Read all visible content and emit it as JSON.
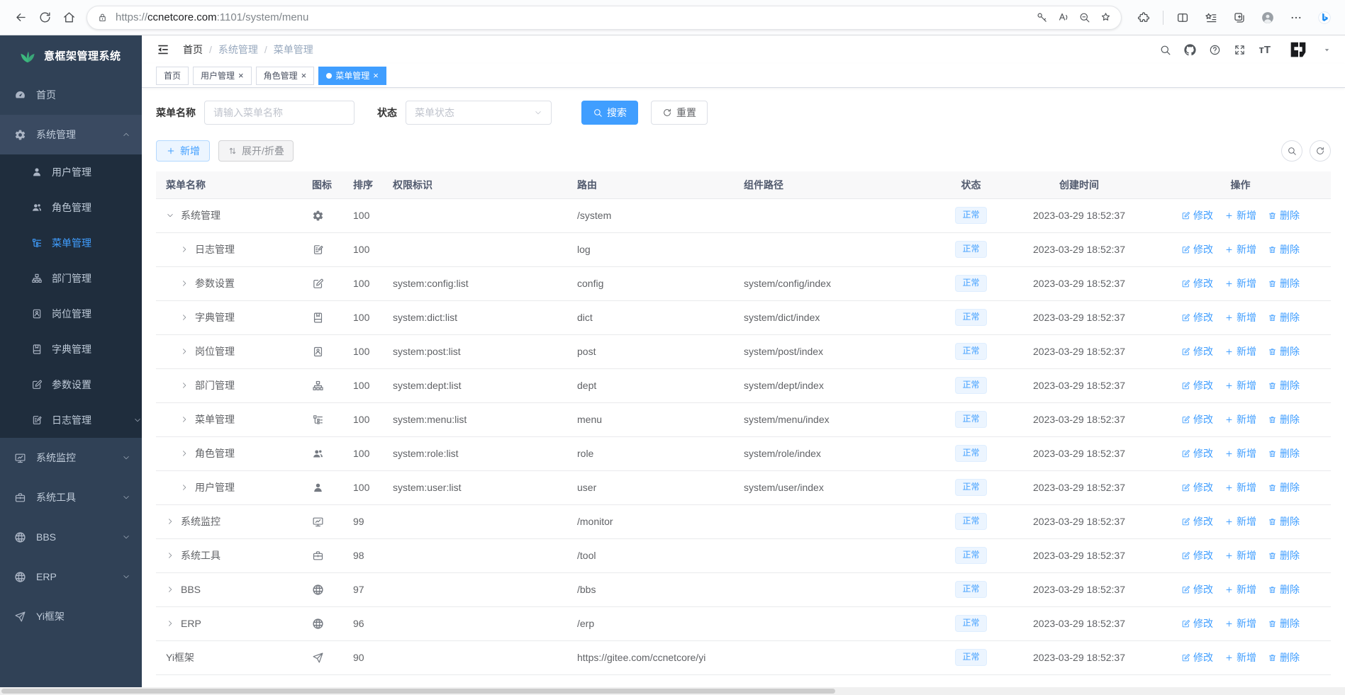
{
  "browser": {
    "url": {
      "scheme": "https://",
      "domain": "ccnetcore.com",
      "path": ":1101/system/menu"
    },
    "toolbar_icons": [
      "back",
      "reload",
      "home"
    ],
    "urlbar_icons": [
      "lock",
      "key",
      "read-aloud",
      "zoom-out",
      "favorite-add"
    ],
    "right_icons": [
      "extensions",
      "split-screen",
      "favorites",
      "collections",
      "profile",
      "more",
      "bing"
    ]
  },
  "sidebar": {
    "title": "意框架管理系统",
    "items": [
      {
        "key": "home",
        "label": "首页",
        "icon": "gauge"
      },
      {
        "key": "system",
        "label": "系统管理",
        "icon": "gear",
        "open": true,
        "children": [
          {
            "key": "user",
            "label": "用户管理",
            "icon": "user"
          },
          {
            "key": "role",
            "label": "角色管理",
            "icon": "users"
          },
          {
            "key": "menu",
            "label": "菜单管理",
            "icon": "treelist",
            "active": true
          },
          {
            "key": "dept",
            "label": "部门管理",
            "icon": "dept"
          },
          {
            "key": "post",
            "label": "岗位管理",
            "icon": "post"
          },
          {
            "key": "dict",
            "label": "字典管理",
            "icon": "dict"
          },
          {
            "key": "config",
            "label": "参数设置",
            "icon": "editsq"
          },
          {
            "key": "log",
            "label": "日志管理",
            "icon": "log",
            "expandable": true
          }
        ]
      },
      {
        "key": "monitor",
        "label": "系统监控",
        "icon": "monitor",
        "expandable": true
      },
      {
        "key": "tool",
        "label": "系统工具",
        "icon": "tool",
        "expandable": true
      },
      {
        "key": "bbs",
        "label": "BBS",
        "icon": "globe",
        "expandable": true
      },
      {
        "key": "erp",
        "label": "ERP",
        "icon": "globe",
        "expandable": true
      },
      {
        "key": "yi",
        "label": "Yi框架",
        "icon": "send"
      }
    ]
  },
  "navbar": {
    "breadcrumb": [
      "首页",
      "系统管理",
      "菜单管理"
    ],
    "right_icons": [
      "search",
      "github",
      "question",
      "fullscreen"
    ],
    "font_size_glyph": "тT"
  },
  "tabs": [
    {
      "label": "首页",
      "closable": false,
      "active": false
    },
    {
      "label": "用户管理",
      "closable": true,
      "active": false
    },
    {
      "label": "角色管理",
      "closable": true,
      "active": false
    },
    {
      "label": "菜单管理",
      "closable": true,
      "active": true
    }
  ],
  "filters": {
    "name_label": "菜单名称",
    "name_placeholder": "请输入菜单名称",
    "name_value": "",
    "status_label": "状态",
    "status_placeholder": "菜单状态",
    "search_label": "搜索",
    "reset_label": "重置"
  },
  "toolbar": {
    "add_label": "新增",
    "toggle_label": "展开/折叠"
  },
  "table": {
    "columns": [
      {
        "label": "菜单名称",
        "align": "left"
      },
      {
        "label": "图标",
        "align": "left"
      },
      {
        "label": "排序",
        "align": "left"
      },
      {
        "label": "权限标识",
        "align": "left"
      },
      {
        "label": "路由",
        "align": "left"
      },
      {
        "label": "组件路径",
        "align": "left"
      },
      {
        "label": "状态",
        "align": "center"
      },
      {
        "label": "创建时间",
        "align": "center"
      },
      {
        "label": "操作",
        "align": "center"
      }
    ],
    "actions": {
      "edit": "修改",
      "add": "新增",
      "delete": "删除"
    },
    "rows": [
      {
        "name": "系统管理",
        "level": 0,
        "state": "expanded",
        "icon": "gear",
        "order": "100",
        "perms": "",
        "route": "/system",
        "component": "",
        "status": "正常",
        "created": "2023-03-29 18:52:37"
      },
      {
        "name": "日志管理",
        "level": 1,
        "state": "collapsed",
        "icon": "log",
        "order": "100",
        "perms": "",
        "route": "log",
        "component": "",
        "status": "正常",
        "created": "2023-03-29 18:52:37"
      },
      {
        "name": "参数设置",
        "level": 1,
        "state": "collapsed",
        "icon": "editsq",
        "order": "100",
        "perms": "system:config:list",
        "route": "config",
        "component": "system/config/index",
        "status": "正常",
        "created": "2023-03-29 18:52:37"
      },
      {
        "name": "字典管理",
        "level": 1,
        "state": "collapsed",
        "icon": "dict",
        "order": "100",
        "perms": "system:dict:list",
        "route": "dict",
        "component": "system/dict/index",
        "status": "正常",
        "created": "2023-03-29 18:52:37"
      },
      {
        "name": "岗位管理",
        "level": 1,
        "state": "collapsed",
        "icon": "post",
        "order": "100",
        "perms": "system:post:list",
        "route": "post",
        "component": "system/post/index",
        "status": "正常",
        "created": "2023-03-29 18:52:37"
      },
      {
        "name": "部门管理",
        "level": 1,
        "state": "collapsed",
        "icon": "dept",
        "order": "100",
        "perms": "system:dept:list",
        "route": "dept",
        "component": "system/dept/index",
        "status": "正常",
        "created": "2023-03-29 18:52:37"
      },
      {
        "name": "菜单管理",
        "level": 1,
        "state": "collapsed",
        "icon": "treelist",
        "order": "100",
        "perms": "system:menu:list",
        "route": "menu",
        "component": "system/menu/index",
        "status": "正常",
        "created": "2023-03-29 18:52:37"
      },
      {
        "name": "角色管理",
        "level": 1,
        "state": "collapsed",
        "icon": "users",
        "order": "100",
        "perms": "system:role:list",
        "route": "role",
        "component": "system/role/index",
        "status": "正常",
        "created": "2023-03-29 18:52:37"
      },
      {
        "name": "用户管理",
        "level": 1,
        "state": "collapsed",
        "icon": "user",
        "order": "100",
        "perms": "system:user:list",
        "route": "user",
        "component": "system/user/index",
        "status": "正常",
        "created": "2023-03-29 18:52:37"
      },
      {
        "name": "系统监控",
        "level": 0,
        "state": "collapsed",
        "icon": "monitor",
        "order": "99",
        "perms": "",
        "route": "/monitor",
        "component": "",
        "status": "正常",
        "created": "2023-03-29 18:52:37"
      },
      {
        "name": "系统工具",
        "level": 0,
        "state": "collapsed",
        "icon": "tool",
        "order": "98",
        "perms": "",
        "route": "/tool",
        "component": "",
        "status": "正常",
        "created": "2023-03-29 18:52:37"
      },
      {
        "name": "BBS",
        "level": 0,
        "state": "collapsed",
        "icon": "globe",
        "order": "97",
        "perms": "",
        "route": "/bbs",
        "component": "",
        "status": "正常",
        "created": "2023-03-29 18:52:37"
      },
      {
        "name": "ERP",
        "level": 0,
        "state": "collapsed",
        "icon": "globe",
        "order": "96",
        "perms": "",
        "route": "/erp",
        "component": "",
        "status": "正常",
        "created": "2023-03-29 18:52:37"
      },
      {
        "name": "Yi框架",
        "level": 0,
        "state": null,
        "icon": "send",
        "order": "90",
        "perms": "",
        "route": "https://gitee.com/ccnetcore/yi",
        "component": "",
        "status": "正常",
        "created": "2023-03-29 18:52:37"
      }
    ]
  },
  "colors": {
    "accent": "#409eff",
    "sidebar_bg": "#304156",
    "sidebar_open_bg": "#3a4a61",
    "submenu_bg": "#1f2d3d",
    "sidebar_text": "#bfcbd9",
    "tag_bg": "#ecf5ff",
    "tag_text": "#409eff",
    "logo_green": "#3cb97e",
    "table_header_bg": "#f8f8f9"
  }
}
